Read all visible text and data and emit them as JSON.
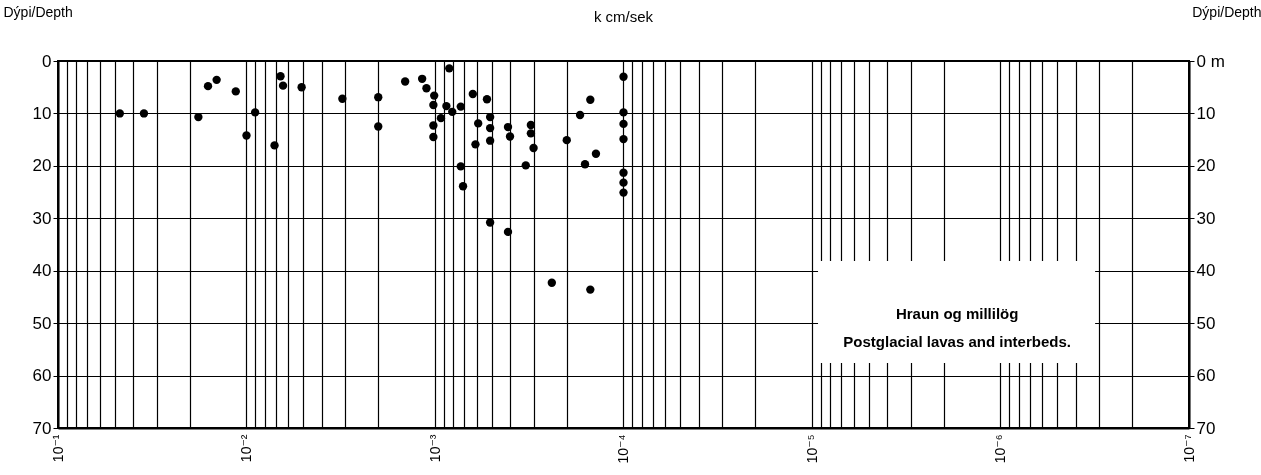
{
  "chart_data": {
    "type": "scatter",
    "title": "k cm/sek",
    "ylabel": "Dýpi/Depth",
    "y2label": "Dýpi/Depth",
    "annotations": [
      "Hraun og millilög",
      "Postglacial lavas and interbeds."
    ],
    "log": "x",
    "grid": true,
    "marker": "circle",
    "xlim": [
      0.1,
      1e-07
    ],
    "xticks": [
      {
        "value": 0.1,
        "label": "10⁻¹"
      },
      {
        "value": 0.09,
        "label": null
      },
      {
        "value": 0.08,
        "label": null
      },
      {
        "value": 0.07,
        "label": null
      },
      {
        "value": 0.06,
        "label": null
      },
      {
        "value": 0.05,
        "label": null
      },
      {
        "value": 0.04,
        "label": null
      },
      {
        "value": 0.03,
        "label": null
      },
      {
        "value": 0.02,
        "label": null
      },
      {
        "value": 0.01,
        "label": "10⁻²"
      },
      {
        "value": 0.009,
        "label": null
      },
      {
        "value": 0.008,
        "label": null
      },
      {
        "value": 0.007,
        "label": null
      },
      {
        "value": 0.006,
        "label": null
      },
      {
        "value": 0.005,
        "label": null
      },
      {
        "value": 0.004,
        "label": null
      },
      {
        "value": 0.003,
        "label": null
      },
      {
        "value": 0.002,
        "label": null
      },
      {
        "value": 0.001,
        "label": "10⁻³"
      },
      {
        "value": 0.0009,
        "label": null
      },
      {
        "value": 0.0008,
        "label": null
      },
      {
        "value": 0.0007,
        "label": null
      },
      {
        "value": 0.0006,
        "label": null
      },
      {
        "value": 0.0005,
        "label": null
      },
      {
        "value": 0.0004,
        "label": null
      },
      {
        "value": 0.0003,
        "label": null
      },
      {
        "value": 0.0002,
        "label": null
      },
      {
        "value": 0.0001,
        "label": "10⁻⁴"
      },
      {
        "value": 9e-05,
        "label": null
      },
      {
        "value": 8e-05,
        "label": null
      },
      {
        "value": 7e-05,
        "label": null
      },
      {
        "value": 6e-05,
        "label": null
      },
      {
        "value": 5e-05,
        "label": null
      },
      {
        "value": 4e-05,
        "label": null
      },
      {
        "value": 3e-05,
        "label": null
      },
      {
        "value": 2e-05,
        "label": null
      },
      {
        "value": 1e-05,
        "label": "10⁻⁵"
      },
      {
        "value": 9e-06,
        "label": null
      },
      {
        "value": 8e-06,
        "label": null
      },
      {
        "value": 7e-06,
        "label": null
      },
      {
        "value": 6e-06,
        "label": null
      },
      {
        "value": 5e-06,
        "label": null
      },
      {
        "value": 4e-06,
        "label": null
      },
      {
        "value": 3e-06,
        "label": null
      },
      {
        "value": 2e-06,
        "label": null
      },
      {
        "value": 1e-06,
        "label": "10⁻⁶"
      },
      {
        "value": 9e-07,
        "label": null
      },
      {
        "value": 8e-07,
        "label": null
      },
      {
        "value": 7e-07,
        "label": null
      },
      {
        "value": 6e-07,
        "label": null
      },
      {
        "value": 5e-07,
        "label": null
      },
      {
        "value": 4e-07,
        "label": null
      },
      {
        "value": 3e-07,
        "label": null
      },
      {
        "value": 2e-07,
        "label": null
      },
      {
        "value": 1e-07,
        "label": "10⁻⁷"
      }
    ],
    "ylim": [
      70,
      0
    ],
    "yticks": [
      0,
      10,
      20,
      30,
      40,
      50,
      60,
      70
    ],
    "y2lim": [
      70,
      0
    ],
    "y2ticks": [
      {
        "value": 0,
        "label": "0 m"
      },
      10,
      20,
      30,
      40,
      50,
      60,
      70
    ],
    "series": [
      {
        "color": "#000000",
        "x": [
          0.047,
          0.035,
          0.018,
          0.016,
          0.0144,
          0.0114,
          0.01,
          0.009,
          0.0071,
          0.0066,
          0.0064,
          0.0051,
          0.0031,
          0.002,
          0.002,
          0.00144,
          0.00117,
          0.00111,
          0.00101,
          0.00102,
          0.00102,
          0.00102,
          0.00084,
          0.00087,
          0.00093,
          0.00081,
          0.00073,
          0.00073,
          0.00071,
          0.00063,
          0.00059,
          0.00061,
          0.00053,
          0.00051,
          0.00051,
          0.00051,
          0.00041,
          0.0004,
          0.00031,
          0.00031,
          0.0003,
          0.00033,
          0.0002,
          0.00017,
          0.00015,
          0.00016,
          0.00014,
          0.0001,
          0.0001,
          0.0001,
          0.0001,
          0.0001,
          0.0001,
          0.0001,
          0.00051,
          0.00041,
          0.00024,
          0.00015
        ],
        "values": [
          10,
          10,
          10.7,
          4.8,
          3.6,
          5.8,
          14.2,
          9.8,
          16.1,
          2.9,
          4.7,
          5.0,
          7.2,
          6.9,
          12.5,
          3.9,
          3.4,
          5.2,
          6.6,
          8.4,
          12.3,
          14.5,
          1.4,
          8.6,
          10.9,
          9.7,
          8.7,
          20.1,
          23.9,
          6.3,
          11.9,
          15.9,
          7.3,
          10.7,
          12.8,
          15.2,
          12.6,
          14.4,
          12.2,
          13.8,
          16.6,
          19.9,
          15.1,
          10.3,
          7.4,
          19.7,
          17.7,
          3.0,
          9.8,
          12.0,
          14.9,
          21.3,
          23.2,
          25.1,
          30.8,
          32.6,
          42.3,
          43.6
        ]
      }
    ]
  }
}
